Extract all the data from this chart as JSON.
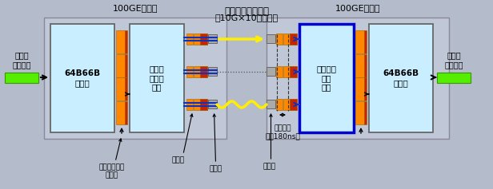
{
  "bg_color": "#b4bccb",
  "title_top": "マルチレーン伝送",
  "title_top2": "（10G×10レーン）",
  "label_tx": "100GE送信機",
  "label_rx": "100GE受信機",
  "label_ethernet_left": "イーサ\nフレーム",
  "label_ethernet_right": "イーサ\nフレーム",
  "label_64b66b_enc": "64B66B\n符号化",
  "label_multi_dist": "マルチ\nレーン\n分配",
  "label_skew": "スキュー\n補正\n回路",
  "label_64b66b_dec": "64B66B\n復号化",
  "label_fugouka": "符号化された\nデータ",
  "label_marker": "マーカ",
  "label_laser": "レーザ",
  "label_receiver": "受光器",
  "label_skew2": "スキュー\n（～180ns）",
  "panel_light_blue": "#c8eeff",
  "panel_bg": "#c0c8d8",
  "panel_border": "#666666",
  "orange_color": "#ff8800",
  "red_accent": "#cc2200",
  "blue_arrow": "#1133bb",
  "yellow_wave": "#ffee00",
  "green_bar": "#55ee00",
  "blue_box_border": "#0000cc",
  "gray_box": "#aaaaaa",
  "black": "#000000",
  "white": "#ffffff"
}
